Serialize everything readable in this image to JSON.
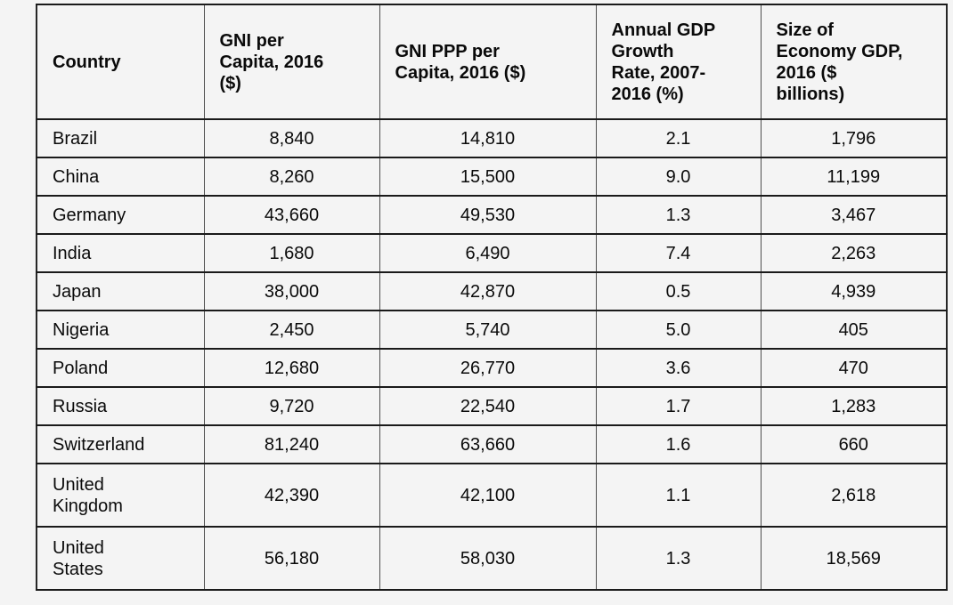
{
  "page": {
    "background_color": "#f4f4f4",
    "cell_background_color": "#f4f4f4",
    "text_color": "#0a0a0a",
    "horizontal_border_color": "#1a1a1a",
    "vertical_border_color": "#4f4f4f"
  },
  "chart_data": {
    "type": "table",
    "columns": [
      "Country",
      "GNI per Capita, 2016 ($)",
      "GNI PPP per Capita, 2016 ($)",
      "Annual GDP Growth Rate, 2007-2016 (%)",
      "Size of Economy GDP, 2016 ($ billions)"
    ],
    "rows": [
      [
        "Brazil",
        "8,840",
        "14,810",
        "2.1",
        "1,796"
      ],
      [
        "China",
        "8,260",
        "15,500",
        "9.0",
        "11,199"
      ],
      [
        "Germany",
        "43,660",
        "49,530",
        "1.3",
        "3,467"
      ],
      [
        "India",
        "1,680",
        "6,490",
        "7.4",
        "2,263"
      ],
      [
        "Japan",
        "38,000",
        "42,870",
        "0.5",
        "4,939"
      ],
      [
        "Nigeria",
        "2,450",
        "5,740",
        "5.0",
        "405"
      ],
      [
        "Poland",
        "12,680",
        "26,770",
        "3.6",
        "470"
      ],
      [
        "Russia",
        "9,720",
        "22,540",
        "1.7",
        "1,283"
      ],
      [
        "Switzerland",
        "81,240",
        "63,660",
        "1.6",
        "660"
      ],
      [
        "United Kingdom",
        "42,390",
        "42,100",
        "1.1",
        "2,618"
      ],
      [
        "United States",
        "56,180",
        "58,030",
        "1.3",
        "18,569"
      ]
    ],
    "rows_numeric": [
      [
        "Brazil",
        8840,
        14810,
        2.1,
        1796
      ],
      [
        "China",
        8260,
        15500,
        9.0,
        11199
      ],
      [
        "Germany",
        43660,
        49530,
        1.3,
        3467
      ],
      [
        "India",
        1680,
        6490,
        7.4,
        2263
      ],
      [
        "Japan",
        38000,
        42870,
        0.5,
        4939
      ],
      [
        "Nigeria",
        2450,
        5740,
        5.0,
        405
      ],
      [
        "Poland",
        12680,
        26770,
        3.6,
        470
      ],
      [
        "Russia",
        9720,
        22540,
        1.7,
        1283
      ],
      [
        "Switzerland",
        81240,
        63660,
        1.6,
        660
      ],
      [
        "United Kingdom",
        42390,
        42100,
        1.1,
        2618
      ],
      [
        "United States",
        56180,
        58030,
        1.3,
        18569
      ]
    ]
  }
}
